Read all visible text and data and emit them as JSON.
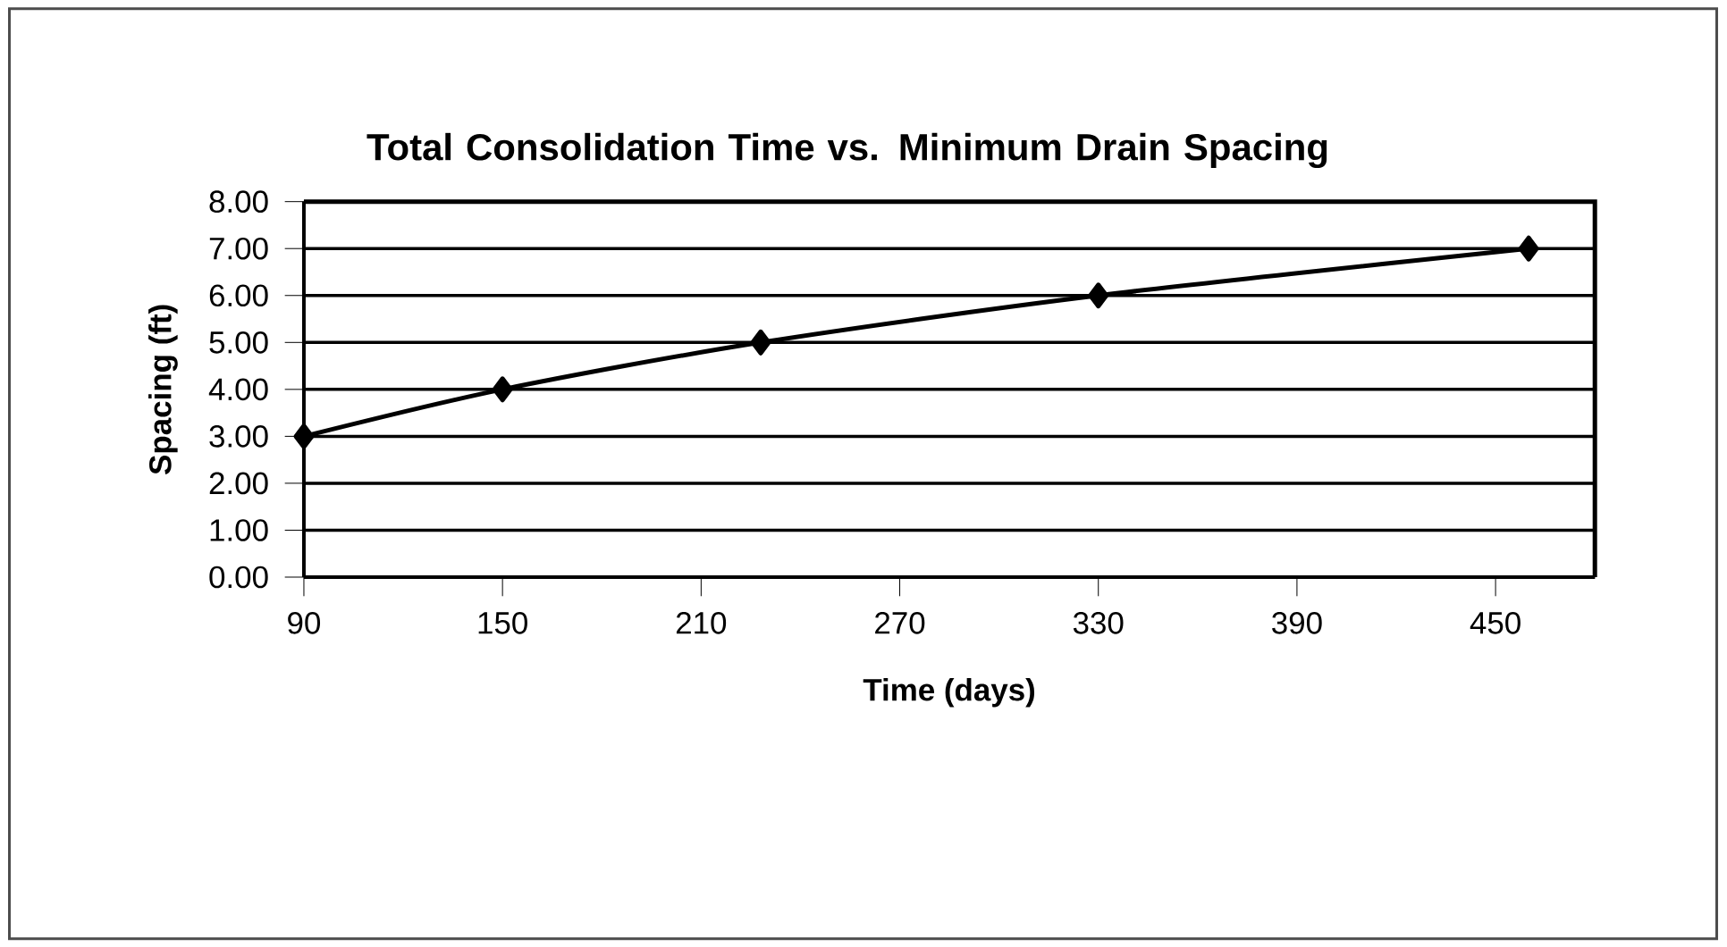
{
  "chart_data": {
    "type": "line",
    "title": "Total Consolidation Time vs. Minimum Drain Spacing",
    "xlabel": "Time (days)",
    "ylabel": "Spacing (ft)",
    "x": [
      90,
      150,
      228,
      330,
      460
    ],
    "series": [
      {
        "color": "#000000",
        "values": [
          3,
          4,
          5,
          6,
          7
        ]
      }
    ],
    "xlim": [
      90,
      480
    ],
    "xticks": [
      90,
      150,
      210,
      270,
      330,
      390,
      450
    ],
    "ylim": [
      0,
      8
    ],
    "yticks": [
      {
        "value": 0,
        "label": "0.00"
      },
      {
        "value": 1,
        "label": "1.00"
      },
      {
        "value": 2,
        "label": "2.00"
      },
      {
        "value": 3,
        "label": "3.00"
      },
      {
        "value": 4,
        "label": "4.00"
      },
      {
        "value": 5,
        "label": "5.00"
      },
      {
        "value": 6,
        "label": "6.00"
      },
      {
        "value": 7,
        "label": "7.00"
      },
      {
        "value": 8,
        "label": "8.00"
      }
    ],
    "grid": "y",
    "marker": "diamond",
    "line_style": "solid"
  }
}
